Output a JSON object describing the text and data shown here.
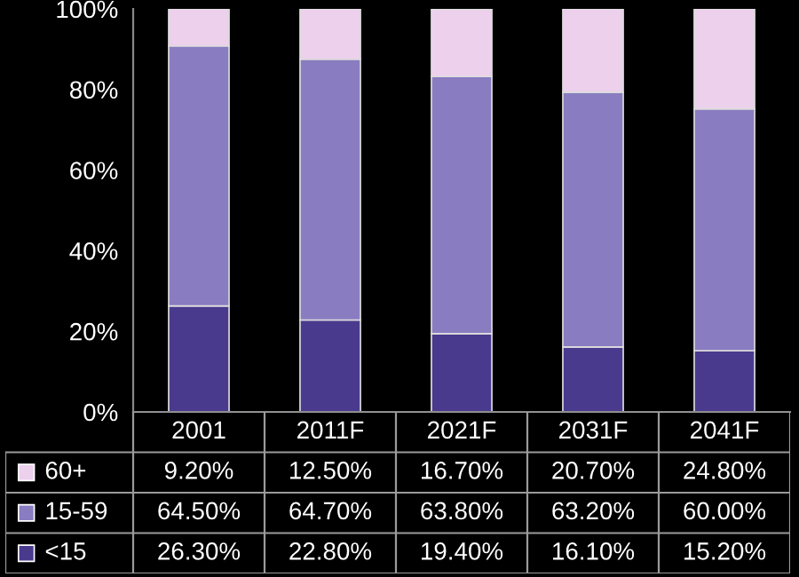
{
  "chart_data": {
    "type": "bar",
    "stacked": true,
    "categories": [
      "2001",
      "2011F",
      "2021F",
      "2031F",
      "2041F"
    ],
    "series": [
      {
        "name": "<15",
        "color": "#4a3a8e",
        "values": [
          26.3,
          22.8,
          19.4,
          16.1,
          15.2
        ],
        "value_labels": [
          "26.30%",
          "22.80%",
          "19.40%",
          "16.10%",
          "15.20%"
        ]
      },
      {
        "name": "15-59",
        "color": "#8a7cc0",
        "values": [
          64.5,
          64.7,
          63.8,
          63.2,
          60.0
        ],
        "value_labels": [
          "64.50%",
          "64.70%",
          "63.80%",
          "63.20%",
          "60.00%"
        ]
      },
      {
        "name": "60+",
        "color": "#ecd0ec",
        "values": [
          9.2,
          12.5,
          16.7,
          20.7,
          24.8
        ],
        "value_labels": [
          "9.20%",
          "12.50%",
          "16.70%",
          "20.70%",
          "24.80%"
        ]
      }
    ],
    "ylim": [
      0,
      100
    ],
    "yticks": [
      {
        "value": 0,
        "label": "0%"
      },
      {
        "value": 20,
        "label": "20%"
      },
      {
        "value": 40,
        "label": "40%"
      },
      {
        "value": 60,
        "label": "60%"
      },
      {
        "value": 80,
        "label": "80%"
      },
      {
        "value": 100,
        "label": "100%"
      }
    ],
    "grid": false,
    "legend": "bottom"
  }
}
